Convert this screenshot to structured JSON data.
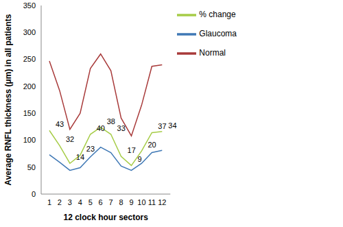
{
  "chart_data": {
    "type": "line",
    "x_label": "12 clock hour sectors",
    "y_label": "Average RNFL thickness (μm) in all patients",
    "categories": [
      1,
      2,
      3,
      4,
      5,
      6,
      7,
      8,
      9,
      10,
      11,
      12
    ],
    "series": [
      {
        "name": "Normal",
        "color": "#a83a3a",
        "marker": "none",
        "values": [
          247,
          192,
          120,
          150,
          233,
          260,
          229,
          141,
          108,
          165,
          237,
          240
        ]
      },
      {
        "name": "% change",
        "color": "#a6cc47",
        "marker": "none",
        "values": [
          118,
          90,
          57,
          72,
          111,
          124,
          111,
          70,
          53,
          80,
          114,
          116
        ],
        "annotations": [
          43,
          32,
          14,
          23,
          40,
          38,
          33,
          17,
          9,
          20,
          37,
          34
        ]
      },
      {
        "name": "Glaucoma",
        "color": "#3f78b5",
        "marker": "none",
        "values": [
          73,
          59,
          44,
          49,
          69,
          87,
          77,
          52,
          44,
          57,
          77,
          81
        ]
      }
    ],
    "ylim": [
      0,
      350
    ],
    "yticks": [
      0,
      50,
      100,
      150,
      200,
      250,
      300,
      350
    ],
    "grid": false,
    "legend": "upper right"
  }
}
